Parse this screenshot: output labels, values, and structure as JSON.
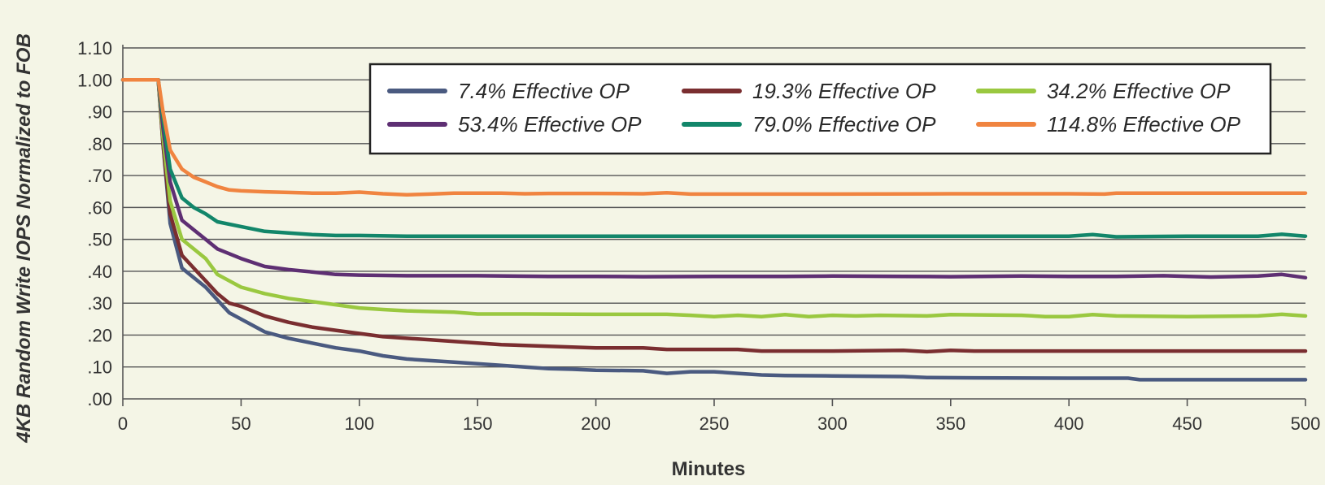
{
  "chart_data": {
    "type": "line",
    "xlabel": "Minutes",
    "ylabel": "4KB Random Write IOPS Normalized to FOB",
    "xlim": [
      0,
      500
    ],
    "ylim": [
      0,
      1.1
    ],
    "x_ticks": [
      "0",
      "50",
      "100",
      "150",
      "200",
      "250",
      "300",
      "350",
      "400",
      "450",
      "500"
    ],
    "x_tick_values": [
      0,
      50,
      100,
      150,
      200,
      250,
      300,
      350,
      400,
      450,
      500
    ],
    "y_ticks": [
      ".00",
      ".10",
      ".20",
      ".30",
      ".40",
      ".50",
      ".60",
      ".70",
      ".80",
      ".90",
      "1.00",
      "1.10"
    ],
    "y_tick_values": [
      0,
      0.1,
      0.2,
      0.3,
      0.4,
      0.5,
      0.6,
      0.7,
      0.8,
      0.9,
      1.0,
      1.1
    ],
    "grid": true,
    "legend_position": "top-right",
    "series": [
      {
        "name": "7.4% Effective OP",
        "color": "#4a5a80",
        "points": [
          [
            0,
            1.0
          ],
          [
            15,
            1.0
          ],
          [
            17,
            0.8
          ],
          [
            20,
            0.55
          ],
          [
            25,
            0.41
          ],
          [
            30,
            0.38
          ],
          [
            35,
            0.35
          ],
          [
            40,
            0.31
          ],
          [
            45,
            0.27
          ],
          [
            50,
            0.25
          ],
          [
            60,
            0.21
          ],
          [
            70,
            0.19
          ],
          [
            80,
            0.175
          ],
          [
            90,
            0.16
          ],
          [
            100,
            0.15
          ],
          [
            110,
            0.135
          ],
          [
            120,
            0.125
          ],
          [
            130,
            0.12
          ],
          [
            140,
            0.115
          ],
          [
            150,
            0.11
          ],
          [
            160,
            0.105
          ],
          [
            170,
            0.1
          ],
          [
            180,
            0.095
          ],
          [
            190,
            0.093
          ],
          [
            200,
            0.09
          ],
          [
            220,
            0.088
          ],
          [
            230,
            0.08
          ],
          [
            240,
            0.085
          ],
          [
            250,
            0.085
          ],
          [
            260,
            0.08
          ],
          [
            270,
            0.075
          ],
          [
            280,
            0.073
          ],
          [
            300,
            0.072
          ],
          [
            330,
            0.07
          ],
          [
            340,
            0.067
          ],
          [
            360,
            0.066
          ],
          [
            400,
            0.065
          ],
          [
            425,
            0.065
          ],
          [
            430,
            0.06
          ],
          [
            460,
            0.06
          ],
          [
            500,
            0.06
          ]
        ]
      },
      {
        "name": "19.3% Effective OP",
        "color": "#7a2e30",
        "points": [
          [
            0,
            1.0
          ],
          [
            15,
            1.0
          ],
          [
            17,
            0.8
          ],
          [
            20,
            0.58
          ],
          [
            25,
            0.45
          ],
          [
            30,
            0.41
          ],
          [
            35,
            0.37
          ],
          [
            40,
            0.33
          ],
          [
            45,
            0.3
          ],
          [
            50,
            0.29
          ],
          [
            60,
            0.26
          ],
          [
            70,
            0.24
          ],
          [
            80,
            0.225
          ],
          [
            90,
            0.215
          ],
          [
            100,
            0.205
          ],
          [
            110,
            0.195
          ],
          [
            120,
            0.19
          ],
          [
            130,
            0.185
          ],
          [
            140,
            0.18
          ],
          [
            150,
            0.175
          ],
          [
            160,
            0.17
          ],
          [
            180,
            0.165
          ],
          [
            200,
            0.16
          ],
          [
            220,
            0.16
          ],
          [
            230,
            0.155
          ],
          [
            260,
            0.155
          ],
          [
            270,
            0.15
          ],
          [
            300,
            0.15
          ],
          [
            330,
            0.152
          ],
          [
            340,
            0.148
          ],
          [
            350,
            0.152
          ],
          [
            360,
            0.15
          ],
          [
            400,
            0.15
          ],
          [
            450,
            0.15
          ],
          [
            500,
            0.15
          ]
        ]
      },
      {
        "name": "34.2% Effective OP",
        "color": "#9ac840",
        "points": [
          [
            0,
            1.0
          ],
          [
            15,
            1.0
          ],
          [
            17,
            0.82
          ],
          [
            20,
            0.62
          ],
          [
            25,
            0.5
          ],
          [
            30,
            0.47
          ],
          [
            35,
            0.44
          ],
          [
            40,
            0.39
          ],
          [
            45,
            0.37
          ],
          [
            50,
            0.35
          ],
          [
            60,
            0.33
          ],
          [
            70,
            0.315
          ],
          [
            80,
            0.305
          ],
          [
            90,
            0.295
          ],
          [
            100,
            0.285
          ],
          [
            110,
            0.28
          ],
          [
            120,
            0.276
          ],
          [
            140,
            0.272
          ],
          [
            150,
            0.266
          ],
          [
            170,
            0.266
          ],
          [
            200,
            0.265
          ],
          [
            230,
            0.265
          ],
          [
            240,
            0.262
          ],
          [
            250,
            0.258
          ],
          [
            260,
            0.262
          ],
          [
            270,
            0.258
          ],
          [
            280,
            0.264
          ],
          [
            290,
            0.258
          ],
          [
            300,
            0.262
          ],
          [
            310,
            0.26
          ],
          [
            320,
            0.262
          ],
          [
            340,
            0.26
          ],
          [
            350,
            0.264
          ],
          [
            380,
            0.262
          ],
          [
            390,
            0.258
          ],
          [
            400,
            0.258
          ],
          [
            410,
            0.264
          ],
          [
            420,
            0.26
          ],
          [
            450,
            0.258
          ],
          [
            480,
            0.26
          ],
          [
            490,
            0.265
          ],
          [
            500,
            0.26
          ]
        ]
      },
      {
        "name": "53.4% Effective OP",
        "color": "#5e2f73",
        "points": [
          [
            0,
            1.0
          ],
          [
            15,
            1.0
          ],
          [
            17,
            0.85
          ],
          [
            20,
            0.68
          ],
          [
            25,
            0.56
          ],
          [
            30,
            0.53
          ],
          [
            35,
            0.5
          ],
          [
            40,
            0.47
          ],
          [
            45,
            0.455
          ],
          [
            50,
            0.44
          ],
          [
            60,
            0.415
          ],
          [
            70,
            0.405
          ],
          [
            80,
            0.398
          ],
          [
            90,
            0.39
          ],
          [
            100,
            0.388
          ],
          [
            120,
            0.386
          ],
          [
            150,
            0.386
          ],
          [
            180,
            0.384
          ],
          [
            200,
            0.384
          ],
          [
            220,
            0.383
          ],
          [
            250,
            0.384
          ],
          [
            280,
            0.384
          ],
          [
            300,
            0.385
          ],
          [
            330,
            0.384
          ],
          [
            350,
            0.383
          ],
          [
            380,
            0.385
          ],
          [
            400,
            0.384
          ],
          [
            420,
            0.384
          ],
          [
            440,
            0.386
          ],
          [
            460,
            0.382
          ],
          [
            480,
            0.385
          ],
          [
            490,
            0.39
          ],
          [
            500,
            0.38
          ]
        ]
      },
      {
        "name": "79.0% Effective OP",
        "color": "#12866a",
        "points": [
          [
            0,
            1.0
          ],
          [
            15,
            1.0
          ],
          [
            17,
            0.88
          ],
          [
            20,
            0.72
          ],
          [
            25,
            0.63
          ],
          [
            30,
            0.6
          ],
          [
            35,
            0.58
          ],
          [
            40,
            0.555
          ],
          [
            50,
            0.54
          ],
          [
            60,
            0.525
          ],
          [
            70,
            0.52
          ],
          [
            80,
            0.515
          ],
          [
            90,
            0.512
          ],
          [
            100,
            0.512
          ],
          [
            120,
            0.51
          ],
          [
            150,
            0.51
          ],
          [
            200,
            0.51
          ],
          [
            250,
            0.51
          ],
          [
            300,
            0.51
          ],
          [
            350,
            0.51
          ],
          [
            400,
            0.51
          ],
          [
            410,
            0.515
          ],
          [
            420,
            0.508
          ],
          [
            450,
            0.51
          ],
          [
            480,
            0.51
          ],
          [
            490,
            0.516
          ],
          [
            500,
            0.51
          ]
        ]
      },
      {
        "name": "114.8% Effective OP",
        "color": "#f08440",
        "points": [
          [
            0,
            1.0
          ],
          [
            15,
            1.0
          ],
          [
            17,
            0.9
          ],
          [
            20,
            0.78
          ],
          [
            25,
            0.72
          ],
          [
            30,
            0.695
          ],
          [
            35,
            0.68
          ],
          [
            40,
            0.665
          ],
          [
            45,
            0.655
          ],
          [
            50,
            0.652
          ],
          [
            60,
            0.649
          ],
          [
            70,
            0.647
          ],
          [
            80,
            0.645
          ],
          [
            90,
            0.645
          ],
          [
            100,
            0.648
          ],
          [
            110,
            0.643
          ],
          [
            120,
            0.64
          ],
          [
            130,
            0.642
          ],
          [
            140,
            0.645
          ],
          [
            150,
            0.645
          ],
          [
            160,
            0.645
          ],
          [
            170,
            0.643
          ],
          [
            180,
            0.644
          ],
          [
            200,
            0.644
          ],
          [
            220,
            0.643
          ],
          [
            230,
            0.646
          ],
          [
            240,
            0.642
          ],
          [
            260,
            0.642
          ],
          [
            300,
            0.642
          ],
          [
            350,
            0.643
          ],
          [
            400,
            0.643
          ],
          [
            415,
            0.642
          ],
          [
            420,
            0.645
          ],
          [
            450,
            0.645
          ],
          [
            500,
            0.645
          ]
        ]
      }
    ]
  }
}
